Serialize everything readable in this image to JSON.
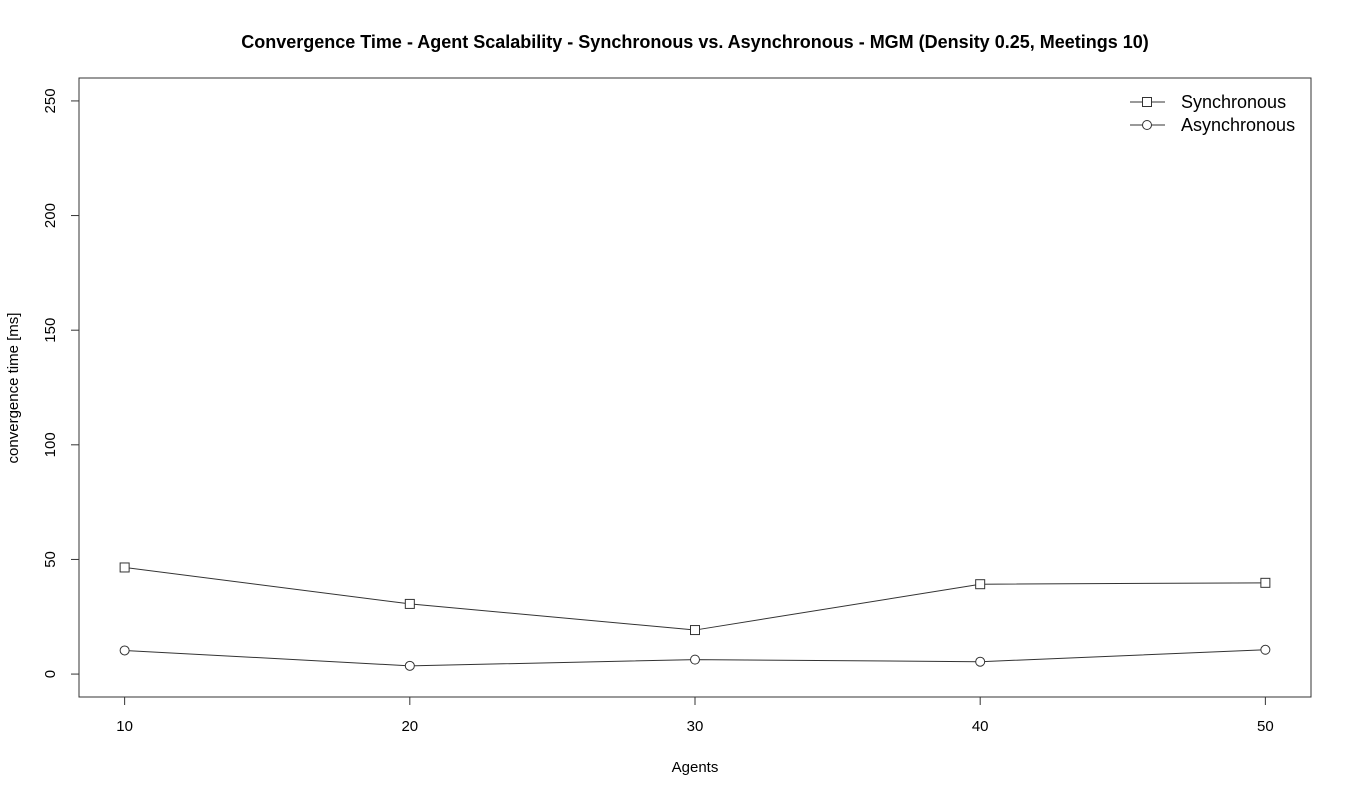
{
  "chart_data": {
    "type": "line",
    "title": "Convergence Time - Agent Scalability - Synchronous vs. Asynchronous - MGM (Density 0.25, Meetings 10)",
    "xlabel": "Agents",
    "ylabel": "convergence time [ms]",
    "x": [
      10,
      20,
      30,
      40,
      50
    ],
    "x_ticks": [
      10,
      20,
      30,
      40,
      50
    ],
    "y_ticks": [
      0,
      50,
      100,
      150,
      200,
      250
    ],
    "xlim": [
      8.4,
      51.6
    ],
    "ylim": [
      -10,
      260
    ],
    "grid": false,
    "legend_position": "top-right",
    "series": [
      {
        "name": "Synchronous",
        "marker": "square",
        "color": "#333333",
        "values": [
          46.5,
          30.6,
          19.2,
          39.2,
          39.8
        ]
      },
      {
        "name": "Asynchronous",
        "marker": "circle",
        "color": "#333333",
        "values": [
          10.3,
          3.6,
          6.3,
          5.4,
          10.6
        ]
      }
    ]
  }
}
